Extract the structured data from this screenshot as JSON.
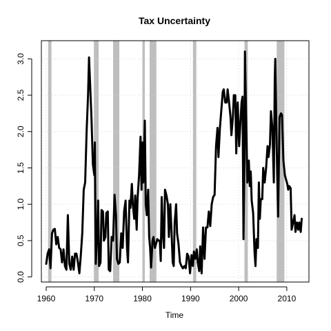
{
  "chart_data": {
    "type": "line",
    "title": "Tax Uncertainty",
    "xlabel": "Time",
    "ylabel": "",
    "xlim": [
      1959.0,
      2014.6
    ],
    "ylim": [
      -0.07,
      3.25
    ],
    "x_ticks": [
      1960,
      1970,
      1980,
      1990,
      2000,
      2010
    ],
    "y_ticks": [
      0.0,
      0.5,
      1.0,
      1.5,
      2.0,
      2.5,
      3.0
    ],
    "x_tick_labels": [
      "1960",
      "1970",
      "1980",
      "1990",
      "2000",
      "2010"
    ],
    "y_tick_labels": [
      "0.0",
      "0.5",
      "1.0",
      "1.5",
      "2.0",
      "2.5",
      "3.0"
    ],
    "grid": true,
    "line_color": "#000000",
    "recession_color": "#bebebe",
    "grid_color": "#d3d3d3",
    "recessions": [
      [
        1960.4,
        1961.1
      ],
      [
        1969.9,
        1970.9
      ],
      [
        1973.9,
        1975.2
      ],
      [
        1980.0,
        1980.5
      ],
      [
        1981.5,
        1982.9
      ],
      [
        1990.5,
        1991.2
      ],
      [
        2001.2,
        2001.9
      ],
      [
        2007.9,
        2009.5
      ]
    ],
    "series": [
      {
        "values": [
          [
            1960.0,
            0.18
          ],
          [
            1960.3,
            0.32
          ],
          [
            1960.6,
            0.38
          ],
          [
            1960.9,
            0.12
          ],
          [
            1961.2,
            0.6
          ],
          [
            1961.5,
            0.65
          ],
          [
            1961.8,
            0.66
          ],
          [
            1962.1,
            0.45
          ],
          [
            1962.4,
            0.55
          ],
          [
            1962.7,
            0.4
          ],
          [
            1963.0,
            0.38
          ],
          [
            1963.3,
            0.2
          ],
          [
            1963.6,
            0.38
          ],
          [
            1963.9,
            0.15
          ],
          [
            1964.2,
            0.1
          ],
          [
            1964.5,
            0.85
          ],
          [
            1964.8,
            0.18
          ],
          [
            1965.1,
            0.1
          ],
          [
            1965.4,
            0.28
          ],
          [
            1965.7,
            0.1
          ],
          [
            1966.0,
            0.32
          ],
          [
            1966.3,
            0.32
          ],
          [
            1966.6,
            0.2
          ],
          [
            1966.9,
            0.05
          ],
          [
            1967.2,
            0.3
          ],
          [
            1967.5,
            0.6
          ],
          [
            1967.8,
            1.2
          ],
          [
            1968.1,
            1.3
          ],
          [
            1968.4,
            2.0
          ],
          [
            1968.7,
            2.5
          ],
          [
            1968.9,
            3.02
          ],
          [
            1969.1,
            2.7
          ],
          [
            1969.4,
            2.2
          ],
          [
            1969.7,
            1.55
          ],
          [
            1970.0,
            1.4
          ],
          [
            1970.1,
            1.85
          ],
          [
            1970.3,
            0.18
          ],
          [
            1970.6,
            0.6
          ],
          [
            1970.8,
            1.05
          ],
          [
            1971.0,
            0.15
          ],
          [
            1971.3,
            0.2
          ],
          [
            1971.5,
            0.92
          ],
          [
            1971.8,
            0.9
          ],
          [
            1972.0,
            0.5
          ],
          [
            1972.3,
            0.55
          ],
          [
            1972.5,
            0.88
          ],
          [
            1972.8,
            0.9
          ],
          [
            1973.0,
            0.1
          ],
          [
            1973.3,
            0.08
          ],
          [
            1973.6,
            0.55
          ],
          [
            1973.9,
            0.5
          ],
          [
            1974.2,
            1.13
          ],
          [
            1974.5,
            0.85
          ],
          [
            1974.7,
            0.25
          ],
          [
            1975.0,
            0.18
          ],
          [
            1975.3,
            0.2
          ],
          [
            1975.6,
            0.6
          ],
          [
            1975.9,
            0.4
          ],
          [
            1976.2,
            0.9
          ],
          [
            1976.5,
            1.05
          ],
          [
            1976.8,
            0.4
          ],
          [
            1977.0,
            0.2
          ],
          [
            1977.3,
            1.05
          ],
          [
            1977.5,
            0.95
          ],
          [
            1977.8,
            1.28
          ],
          [
            1978.0,
            1.0
          ],
          [
            1978.3,
            0.8
          ],
          [
            1978.5,
            1.12
          ],
          [
            1978.8,
            0.65
          ],
          [
            1979.0,
            1.1
          ],
          [
            1979.3,
            1.4
          ],
          [
            1979.6,
            1.93
          ],
          [
            1979.8,
            1.2
          ],
          [
            1980.0,
            1.85
          ],
          [
            1980.2,
            1.3
          ],
          [
            1980.5,
            2.15
          ],
          [
            1980.7,
            1.0
          ],
          [
            1980.9,
            0.85
          ],
          [
            1981.2,
            1.2
          ],
          [
            1981.4,
            0.55
          ],
          [
            1981.6,
            0.4
          ],
          [
            1981.8,
            0.13
          ],
          [
            1982.1,
            0.5
          ],
          [
            1982.3,
            0.55
          ],
          [
            1982.6,
            0.4
          ],
          [
            1982.8,
            0.45
          ],
          [
            1983.1,
            0.52
          ],
          [
            1983.3,
            0.5
          ],
          [
            1983.6,
            0.5
          ],
          [
            1983.8,
            0.22
          ],
          [
            1984.0,
            1.1
          ],
          [
            1984.3,
            0.55
          ],
          [
            1984.5,
            0.4
          ],
          [
            1984.7,
            1.2
          ],
          [
            1985.0,
            1.12
          ],
          [
            1985.3,
            1.0
          ],
          [
            1985.5,
            0.55
          ],
          [
            1985.8,
            1.0
          ],
          [
            1986.0,
            0.7
          ],
          [
            1986.3,
            0.2
          ],
          [
            1986.5,
            0.15
          ],
          [
            1986.7,
            0.75
          ],
          [
            1987.0,
            1.0
          ],
          [
            1987.2,
            0.6
          ],
          [
            1987.5,
            0.45
          ],
          [
            1987.8,
            0.2
          ],
          [
            1988.1,
            0.15
          ],
          [
            1988.4,
            0.12
          ],
          [
            1988.7,
            0.15
          ],
          [
            1989.0,
            0.12
          ],
          [
            1989.3,
            0.32
          ],
          [
            1989.6,
            0.28
          ],
          [
            1989.9,
            0.05
          ],
          [
            1990.2,
            0.3
          ],
          [
            1990.5,
            0.15
          ],
          [
            1990.7,
            0.35
          ],
          [
            1991.0,
            0.25
          ],
          [
            1991.3,
            0.38
          ],
          [
            1991.5,
            0.2
          ],
          [
            1991.8,
            0.08
          ],
          [
            1992.0,
            0.42
          ],
          [
            1992.3,
            0.05
          ],
          [
            1992.6,
            0.68
          ],
          [
            1992.9,
            0.25
          ],
          [
            1993.2,
            0.68
          ],
          [
            1993.5,
            0.68
          ],
          [
            1993.8,
            0.9
          ],
          [
            1994.1,
            0.7
          ],
          [
            1994.4,
            1.0
          ],
          [
            1994.7,
            1.1
          ],
          [
            1995.0,
            1.13
          ],
          [
            1995.3,
            1.8
          ],
          [
            1995.6,
            2.05
          ],
          [
            1995.8,
            1.65
          ],
          [
            1996.1,
            2.05
          ],
          [
            1996.4,
            2.3
          ],
          [
            1996.7,
            2.55
          ],
          [
            1996.9,
            2.58
          ],
          [
            1997.2,
            2.4
          ],
          [
            1997.5,
            2.4
          ],
          [
            1997.7,
            2.58
          ],
          [
            1998.0,
            2.4
          ],
          [
            1998.3,
            2.2
          ],
          [
            1998.5,
            1.95
          ],
          [
            1998.8,
            2.2
          ],
          [
            1999.0,
            2.5
          ],
          [
            1999.3,
            2.5
          ],
          [
            1999.5,
            1.7
          ],
          [
            1999.8,
            2.4
          ],
          [
            2000.1,
            1.8
          ],
          [
            2000.3,
            2.05
          ],
          [
            2000.6,
            2.4
          ],
          [
            2000.8,
            2.48
          ],
          [
            2001.0,
            0.52
          ],
          [
            2001.2,
            1.65
          ],
          [
            2001.3,
            3.1
          ],
          [
            2001.6,
            2.0
          ],
          [
            2001.8,
            1.3
          ],
          [
            2002.1,
            1.6
          ],
          [
            2002.3,
            1.25
          ],
          [
            2002.5,
            1.45
          ],
          [
            2002.7,
            1.05
          ],
          [
            2003.0,
            0.88
          ],
          [
            2003.3,
            0.35
          ],
          [
            2003.5,
            0.15
          ],
          [
            2003.7,
            0.52
          ],
          [
            2004.0,
            0.4
          ],
          [
            2004.2,
            1.3
          ],
          [
            2004.4,
            0.8
          ],
          [
            2004.6,
            1.07
          ],
          [
            2004.9,
            1.07
          ],
          [
            2005.1,
            1.5
          ],
          [
            2005.4,
            1.3
          ],
          [
            2005.7,
            1.5
          ],
          [
            2006.0,
            1.8
          ],
          [
            2006.2,
            1.65
          ],
          [
            2006.5,
            1.82
          ],
          [
            2006.7,
            2.28
          ],
          [
            2007.0,
            2.05
          ],
          [
            2007.3,
            1.3
          ],
          [
            2007.5,
            2.75
          ],
          [
            2007.6,
            3.0
          ],
          [
            2007.9,
            1.8
          ],
          [
            2008.2,
            0.83
          ],
          [
            2008.5,
            2.2
          ],
          [
            2008.8,
            2.25
          ],
          [
            2009.0,
            2.23
          ],
          [
            2009.3,
            1.6
          ],
          [
            2009.6,
            1.4
          ],
          [
            2009.8,
            1.35
          ],
          [
            2010.1,
            1.28
          ],
          [
            2010.3,
            1.2
          ],
          [
            2010.5,
            1.25
          ],
          [
            2010.8,
            1.22
          ],
          [
            2011.0,
            0.65
          ],
          [
            2011.3,
            0.75
          ],
          [
            2011.6,
            0.85
          ],
          [
            2011.8,
            0.62
          ],
          [
            2012.1,
            0.75
          ],
          [
            2012.4,
            0.65
          ],
          [
            2012.6,
            0.75
          ],
          [
            2012.9,
            0.62
          ],
          [
            2013.1,
            0.8
          ]
        ]
      }
    ]
  }
}
